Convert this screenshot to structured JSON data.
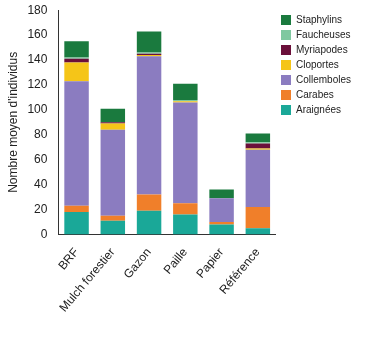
{
  "chart_data": {
    "type": "bar",
    "stacked": true,
    "y_label": "Nombre moyen d'individus",
    "categories": [
      "BRF",
      "Mulch forestier",
      "Gazon",
      "Paille",
      "Papier",
      "Référence"
    ],
    "series": [
      {
        "name": "Araignées",
        "color": "#1aa898",
        "values": [
          18,
          11,
          19,
          16,
          8,
          5
        ]
      },
      {
        "name": "Carabes",
        "color": "#f07f2a",
        "values": [
          5,
          4,
          13,
          9,
          2,
          17
        ]
      },
      {
        "name": "Collemboles",
        "color": "#8b7cc0",
        "values": [
          100,
          69,
          111,
          81,
          19,
          46
        ]
      },
      {
        "name": "Cloportes",
        "color": "#f5c518",
        "values": [
          15,
          5,
          1,
          1,
          0,
          1
        ]
      },
      {
        "name": "Myriapodes",
        "color": "#6b0f3a",
        "values": [
          3,
          1,
          1,
          0,
          0,
          4
        ]
      },
      {
        "name": "Faucheuses",
        "color": "#7fc8a0",
        "values": [
          1,
          0,
          1,
          1,
          0,
          1
        ]
      },
      {
        "name": "Staphylins",
        "color": "#1a7a3e",
        "values": [
          13,
          11,
          17,
          13,
          7,
          7
        ]
      }
    ],
    "ylim": [
      0,
      180
    ],
    "yticks": [
      0,
      20,
      40,
      60,
      80,
      100,
      120,
      140,
      160,
      180
    ],
    "grid": false,
    "legend": "top-right"
  }
}
